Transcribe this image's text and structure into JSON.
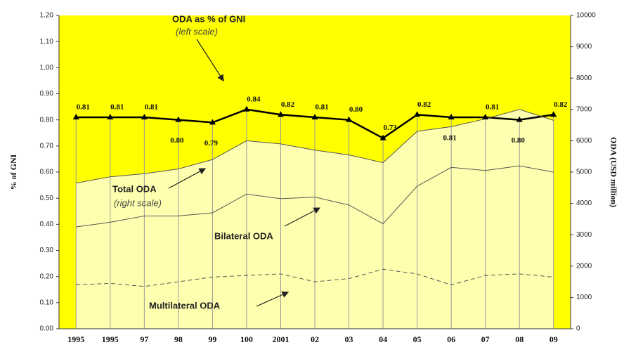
{
  "chart_data": {
    "type": "line",
    "categories": [
      "1995",
      "1995",
      "97",
      "98",
      "99",
      "100",
      "2001",
      "02",
      "03",
      "04",
      "05",
      "06",
      "07",
      "08",
      "09"
    ],
    "series": [
      {
        "name": "ODA as % of GNI",
        "color": "#000000",
        "axis": "y",
        "values": [
          0.81,
          0.81,
          0.81,
          0.8,
          0.79,
          0.84,
          0.82,
          0.81,
          0.8,
          0.73,
          0.82,
          0.81,
          0.81,
          0.8,
          0.82
        ],
        "value_labels": [
          "0.81",
          "0.81",
          "0.81",
          "0.80",
          "0.79",
          "0.84",
          "0.82",
          "0.81",
          "0.80",
          "0.73",
          "0.82",
          "0.81",
          "0.81",
          "0.80",
          "0.82"
        ]
      },
      {
        "name": "Total ODA",
        "color": "#555555",
        "axis": "y2",
        "values": [
          4650,
          4850,
          4950,
          5100,
          5400,
          6000,
          5900,
          5700,
          5550,
          5300,
          6300,
          6450,
          6700,
          7000,
          6650
        ]
      },
      {
        "name": "Bilateral ODA",
        "color": "#555555",
        "axis": "y2",
        "values": [
          3250,
          3400,
          3600,
          3600,
          3700,
          4300,
          4150,
          4200,
          3950,
          3350,
          4550,
          5150,
          5050,
          5200,
          5000
        ]
      },
      {
        "name": "Multilateral ODA",
        "color": "#555555",
        "axis": "y2",
        "values": [
          1400,
          1450,
          1350,
          1500,
          1650,
          1700,
          1750,
          1500,
          1600,
          1900,
          1750,
          1400,
          1700,
          1750,
          1650
        ]
      }
    ],
    "annotations": {
      "oda_gni": "ODA as % of GNI",
      "left_scale": "(left scale)",
      "total": "Total ODA",
      "right_scale": "(right scale)",
      "bilateral": "Bilateral ODA",
      "multilateral": "Multilateral ODA"
    },
    "ylabel": "% of GNI",
    "y2label": "ODA (USD million)",
    "ylim": [
      0,
      1.2
    ],
    "yticks": [
      {
        "value": 0,
        "label": "0.00"
      },
      {
        "value": 0.1,
        "label": "0.10"
      },
      {
        "value": 0.2,
        "label": "0.20"
      },
      {
        "value": 0.3,
        "label": "0.30"
      },
      {
        "value": 0.4,
        "label": "0.40"
      },
      {
        "value": 0.5,
        "label": "0.50"
      },
      {
        "value": 0.6,
        "label": "0.60"
      },
      {
        "value": 0.7,
        "label": "0.70"
      },
      {
        "value": 0.8,
        "label": "0.80"
      },
      {
        "value": 0.9,
        "label": "0.90"
      },
      {
        "value": 1.0,
        "label": "1.00"
      },
      {
        "value": 1.1,
        "label": "1.10"
      },
      {
        "value": 1.2,
        "label": "1.20"
      }
    ],
    "y2lim": [
      0,
      10000
    ],
    "y2ticks": [
      0,
      1000,
      2000,
      3000,
      4000,
      5000,
      6000,
      7000,
      8000,
      9000,
      10000
    ],
    "background": "#ffff00",
    "area_color": "#ffffb0"
  }
}
